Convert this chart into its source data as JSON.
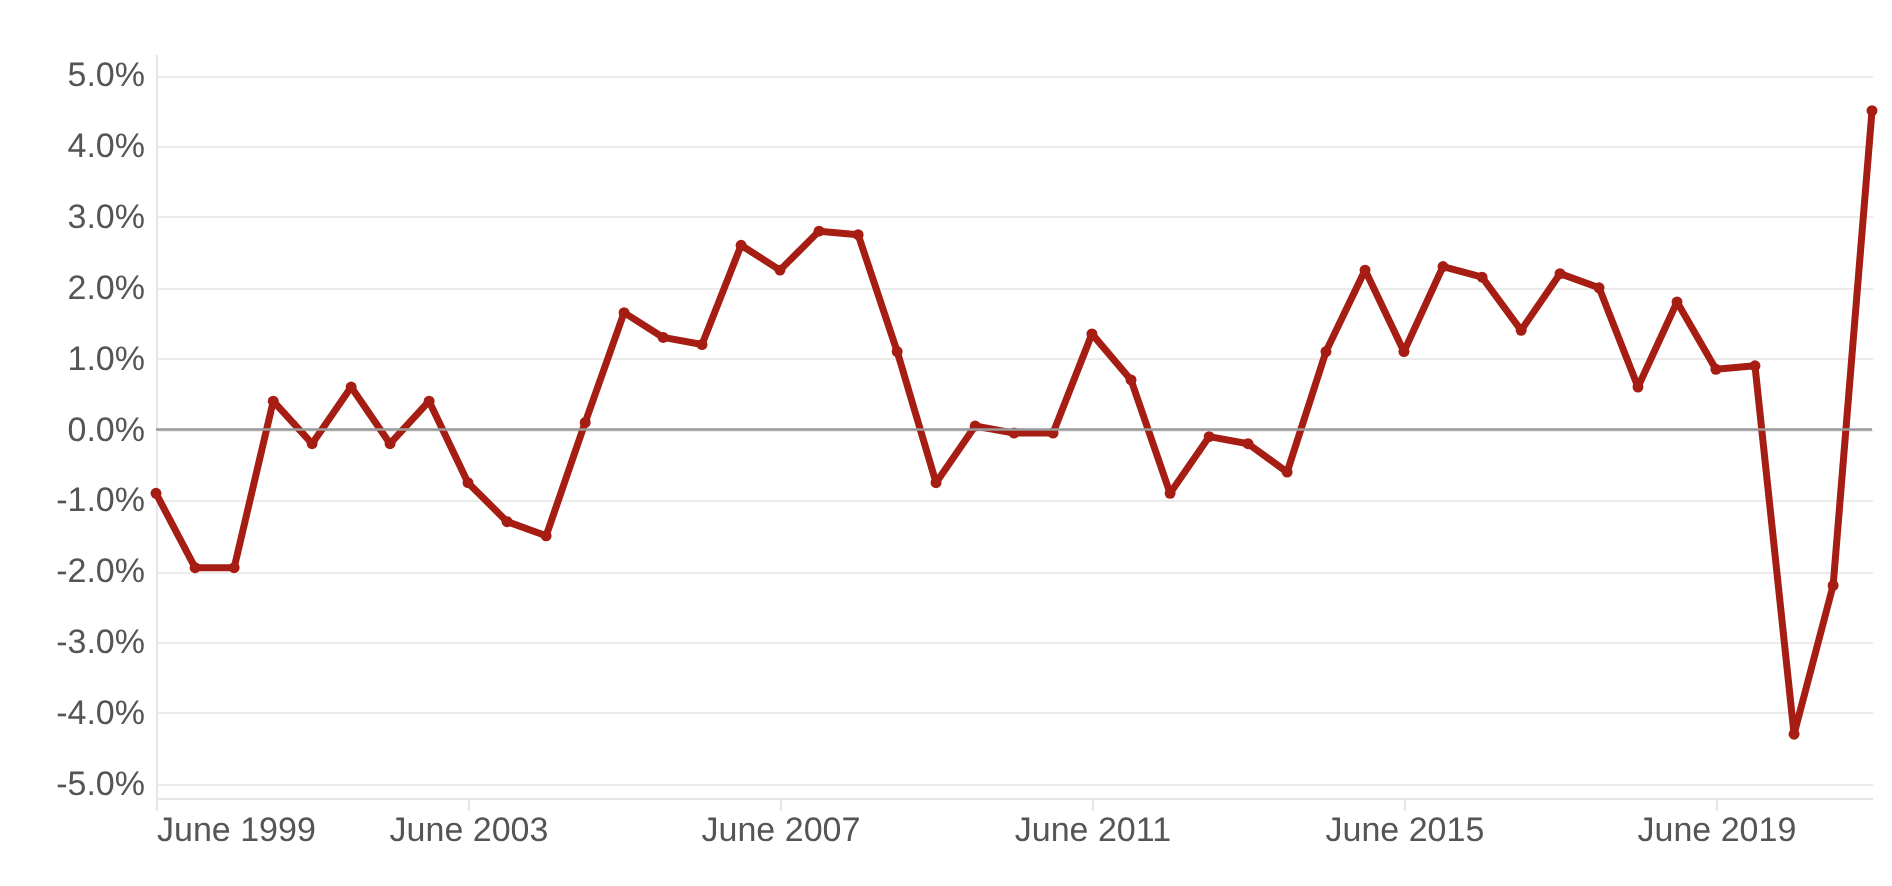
{
  "chart_data": {
    "type": "line",
    "x": [
      "1999-06",
      "1999-12",
      "2000-06",
      "2000-12",
      "2001-06",
      "2001-12",
      "2002-06",
      "2002-12",
      "2003-06",
      "2003-12",
      "2004-06",
      "2004-12",
      "2005-06",
      "2005-12",
      "2006-06",
      "2006-12",
      "2007-06",
      "2007-12",
      "2008-06",
      "2008-12",
      "2009-06",
      "2009-12",
      "2010-06",
      "2010-12",
      "2011-06",
      "2011-12",
      "2012-06",
      "2012-12",
      "2013-06",
      "2013-12",
      "2014-06",
      "2014-12",
      "2015-06",
      "2015-12",
      "2016-06",
      "2016-12",
      "2017-06",
      "2017-12",
      "2018-06",
      "2018-12",
      "2019-06",
      "2019-12",
      "2020-06",
      "2020-12",
      "2021-06"
    ],
    "series": [
      {
        "color": "#a61d14",
        "values": [
          -0.9,
          -1.95,
          -1.95,
          0.4,
          -0.2,
          0.6,
          -0.2,
          0.4,
          -0.75,
          -1.3,
          -1.5,
          0.1,
          1.65,
          1.3,
          1.2,
          2.6,
          2.25,
          2.8,
          2.75,
          1.1,
          -0.75,
          0.05,
          -0.05,
          -0.05,
          1.35,
          0.7,
          -0.9,
          -0.1,
          -0.2,
          -0.6,
          1.1,
          2.25,
          1.1,
          2.3,
          2.15,
          1.4,
          2.2,
          2.0,
          0.6,
          1.8,
          0.85,
          0.9,
          -4.3,
          -2.2,
          4.5
        ]
      }
    ],
    "xlim": [
      "1999-06",
      "2021-06"
    ],
    "xticks": [
      {
        "value": "1999-06",
        "label": "June 1999"
      },
      {
        "value": "2003-06",
        "label": "June 2003"
      },
      {
        "value": "2007-06",
        "label": "June 2007"
      },
      {
        "value": "2011-06",
        "label": "June 2011"
      },
      {
        "value": "2015-06",
        "label": "June 2015"
      },
      {
        "value": "2019-06",
        "label": "June 2019"
      }
    ],
    "ylim": [
      -5.2,
      5.3
    ],
    "yticks": [
      {
        "value": -5,
        "label": "-5.0%"
      },
      {
        "value": -4,
        "label": "-4.0%"
      },
      {
        "value": -3,
        "label": "-3.0%"
      },
      {
        "value": -2,
        "label": "-2.0%"
      },
      {
        "value": -1,
        "label": "-1.0%"
      },
      {
        "value": 0,
        "label": "0.0%"
      },
      {
        "value": 1,
        "label": "1.0%"
      },
      {
        "value": 2,
        "label": "2.0%"
      },
      {
        "value": 3,
        "label": "3.0%"
      },
      {
        "value": 4,
        "label": "4.0%"
      },
      {
        "value": 5,
        "label": "5.0%"
      }
    ],
    "ref_lines": [
      {
        "axis": "y",
        "value": 0,
        "color": "#999999"
      }
    ],
    "grid": "y",
    "marker": "circle",
    "line_style": "solid"
  }
}
